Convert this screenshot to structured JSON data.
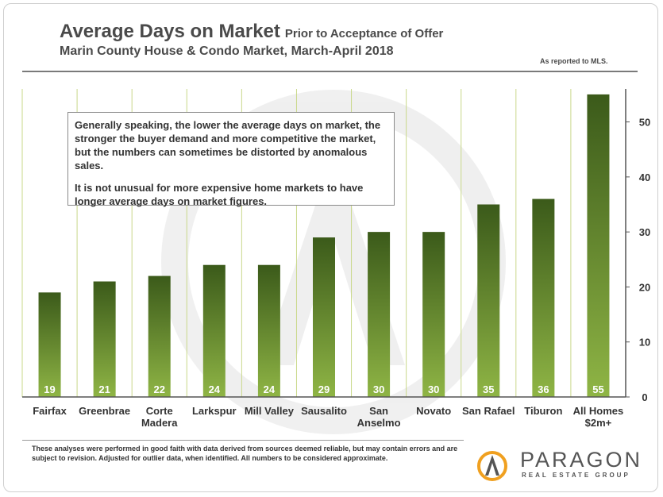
{
  "header": {
    "title": "Average Days on Market",
    "title_suffix": "Prior to Acceptance of Offer",
    "subtitle": "Marin County House & Condo Market, March-April 2018",
    "reported": "As reported  to MLS."
  },
  "callout": {
    "paragraph1": "Generally speaking, the lower the average days on market, the stronger the buyer demand and more competitive the market, but the numbers can sometimes be distorted by anomalous sales.",
    "paragraph2": "It is not unusual for more expensive home markets to have longer average days on market figures."
  },
  "footer": {
    "disclaimer": "These analyses were performed in good faith with data derived from sources deemed reliable, but may contain errors and are subject to revision. Adjusted for outlier data, when identified. All numbers  to be considered approximate."
  },
  "logo": {
    "name": "PARAGON",
    "tagline": "REAL ESTATE GROUP"
  },
  "colors": {
    "bar_top": "#3b5a1a",
    "bar_bottom": "#8fb545",
    "grid": "#c9d88a",
    "logo_orange": "#f0a020"
  },
  "chart_data": {
    "type": "bar",
    "title": "Average Days on Market",
    "categories": [
      [
        "Fairfax"
      ],
      [
        "Greenbrae"
      ],
      [
        "Corte",
        "Madera"
      ],
      [
        "Larkspur"
      ],
      [
        "Mill Valley"
      ],
      [
        "Sausalito"
      ],
      [
        "San",
        "Anselmo"
      ],
      [
        "Novato"
      ],
      [
        "San Rafael"
      ],
      [
        "Tiburon"
      ],
      [
        "All Homes",
        "$2m+"
      ]
    ],
    "values": [
      19,
      21,
      22,
      24,
      24,
      29,
      30,
      30,
      35,
      36,
      55
    ],
    "ylim": [
      0,
      56
    ],
    "yticks": [
      0,
      10,
      20,
      30,
      40,
      50
    ],
    "y_axis_side": "right",
    "grid": "vertical separators",
    "data_labels": true
  }
}
